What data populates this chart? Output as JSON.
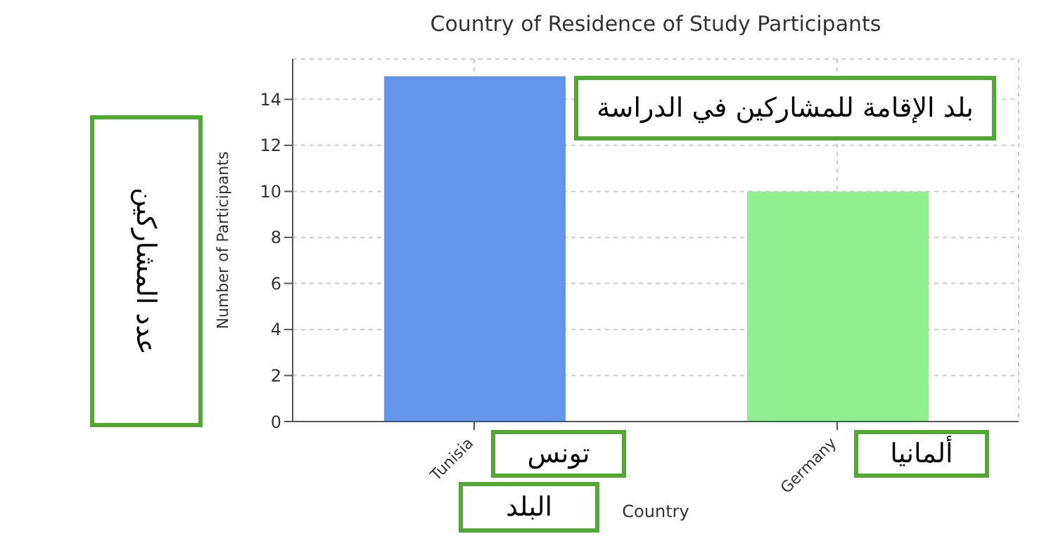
{
  "chart_data": {
    "type": "bar",
    "title": "Country of Residence of Study Participants",
    "xlabel": "Country",
    "ylabel": "Number of Participants",
    "categories": [
      "Tunisia",
      "Germany"
    ],
    "values": [
      15,
      10
    ],
    "colors": [
      "#6495ed",
      "#90ee90"
    ],
    "ylim": [
      0,
      15.75
    ],
    "yticks": [
      0,
      2,
      4,
      6,
      8,
      10,
      12,
      14
    ],
    "grid": true,
    "annotations": [
      "بلد الإقامة للمشاركين في الدراسة",
      "عدد المشاركين",
      "البلد",
      "تونس",
      "ألمانيا"
    ]
  }
}
